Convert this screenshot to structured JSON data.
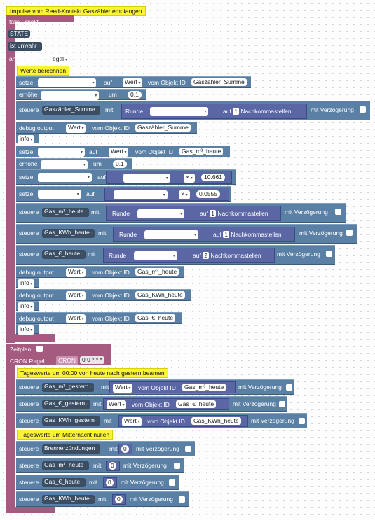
{
  "main": {
    "comment": "Impulse vom Reed-Kontakt Gaszähler empfangen",
    "falls_objekt": "falls Objekt",
    "state": "STATE",
    "ist_unwahr": "ist unwahr",
    "anerkannt_ist": "anerkannt ist",
    "egal": "egal",
    "werte_comment": "Werte berechnen",
    "setze": "setze",
    "erhoehe": "erhöhe",
    "steuere": "steuere",
    "debug_output": "debug output",
    "auf": "auf",
    "um": "um",
    "mit": "mit",
    "wert": "Wert",
    "vom_objekt_id": "vom Objekt ID",
    "info": "info",
    "runde": "Runde",
    "nachkommastellen": "Nachkommastellen",
    "mit_verzoegerung": "mit Verzögerung",
    "times": "×",
    "var_gaszaehler_summe": "Gaszähler_Summe",
    "var_gas_m3_heute": "Gas_m³_heute",
    "var_gas_kwh_heute_a": "Gas_KWH_heute",
    "var_gas_euro_heute": "Gas_€_heute",
    "var_gas_kwh_heute_b": "Gas_KWh_heute",
    "val_01": "0.1",
    "val_10661": "10.661",
    "val_00555": "0.0555",
    "val_1": "1",
    "val_2": "2"
  },
  "schedule": {
    "zeitplan": "Zeitplan",
    "cron_regel": "CRON Regel",
    "cron": "CRON",
    "cron_value": "0 0 * * *",
    "comment1": "Tageswerte um 00:00 von heute nach gestern beamen",
    "comment2": "Tageswerte um Mitternacht nullen",
    "var_m3_gestern": "Gas_m³_gestern",
    "var_euro_gestern": "Gas_€_gestern",
    "var_kwh_gestern": "Gas_KWh_gestern",
    "var_brenner": "Brennerzündungen",
    "val_0": "0"
  }
}
